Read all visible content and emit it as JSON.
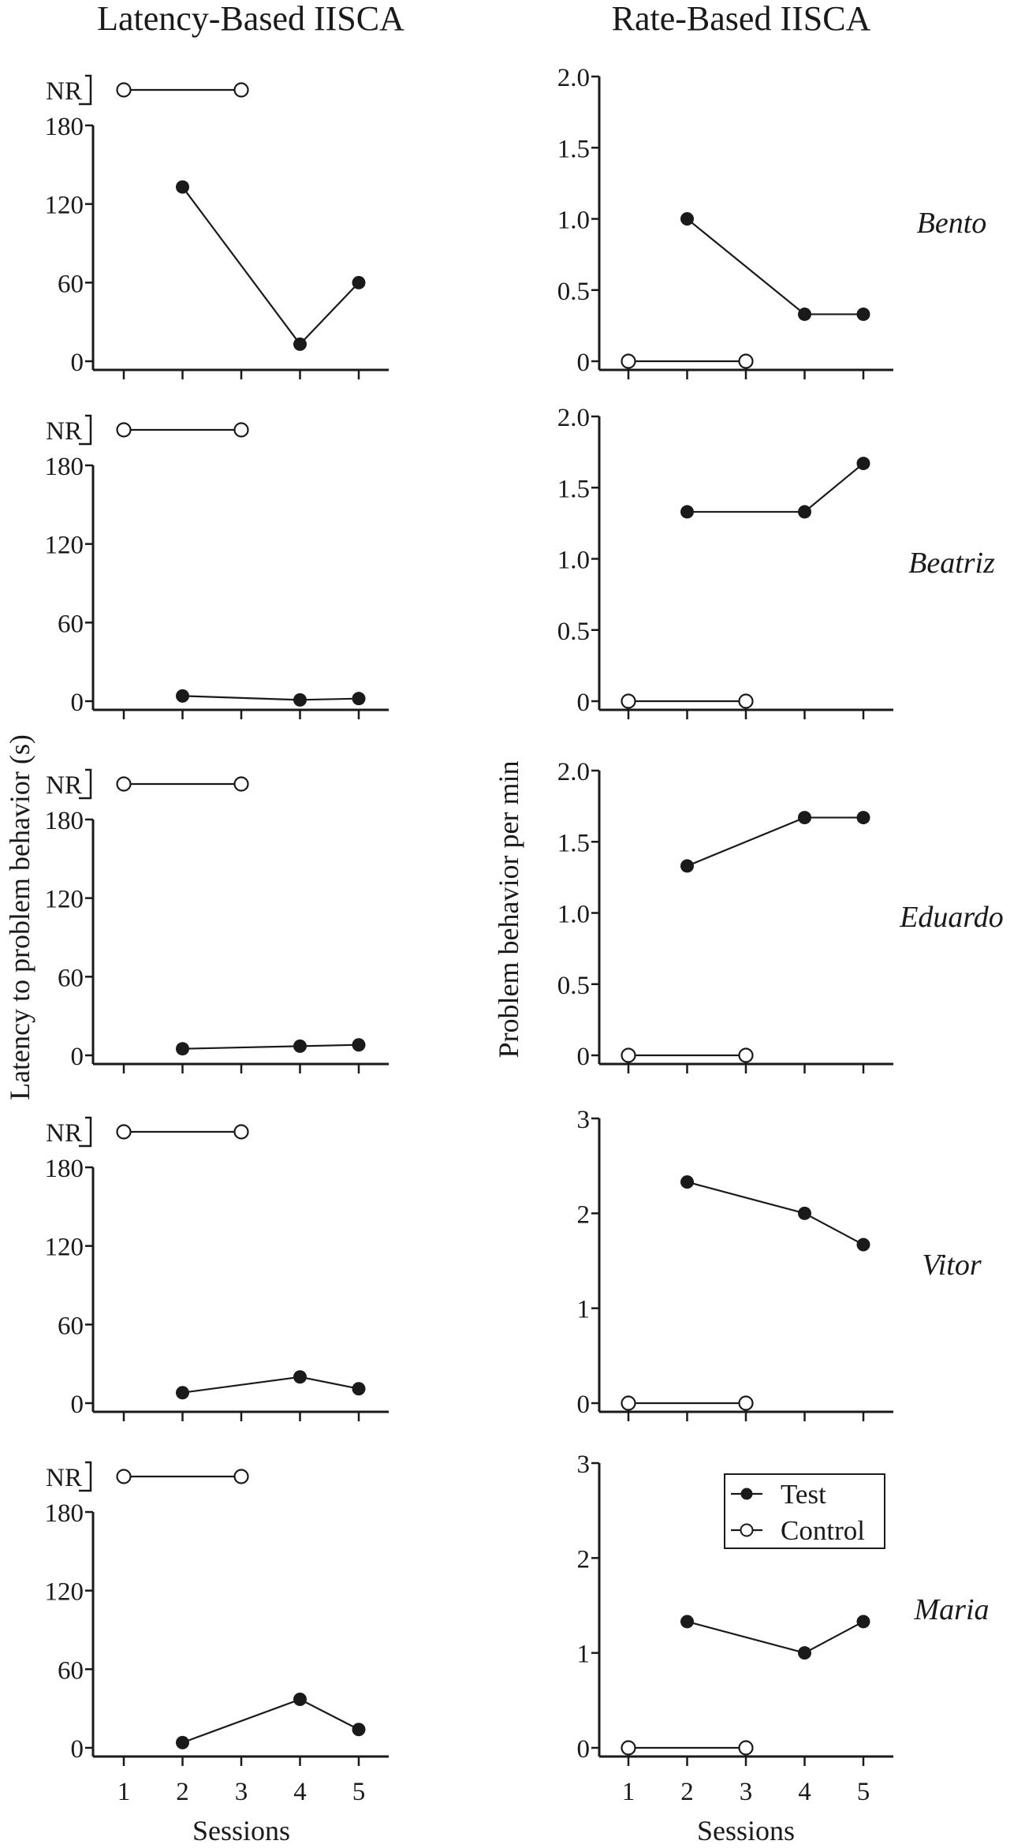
{
  "chart_data": {
    "type": "line",
    "titles": {
      "left": "Latency-Based IISCA",
      "right": "Rate-Based IISCA"
    },
    "ylabels": {
      "left": "Latency to problem behavior (s)",
      "right": "Problem behavior per min"
    },
    "xlabel": "Sessions",
    "x": [
      1,
      2,
      3,
      4,
      5
    ],
    "x_tick_labels": [
      "1",
      "2",
      "3",
      "4",
      "5"
    ],
    "legend": {
      "placement": "inside bottom-right panel, top",
      "entries": [
        "Test",
        "Control"
      ]
    },
    "nr_label": "NR",
    "left_y": {
      "ylim": [
        0,
        180
      ],
      "ticks": [
        0,
        60,
        120,
        180
      ],
      "tick_labels": [
        "0",
        "60",
        "120",
        "180"
      ]
    },
    "participants": [
      {
        "name": "Bento",
        "latency": {
          "test": [
            null,
            133,
            null,
            13,
            60
          ],
          "control": [
            "NR",
            null,
            "NR",
            null,
            null
          ]
        },
        "rate": {
          "ylim": [
            0,
            2.0
          ],
          "ticks": [
            0,
            0.5,
            1.0,
            1.5,
            2.0
          ],
          "tick_labels": [
            "0",
            "0.5",
            "1.0",
            "1.5",
            "2.0"
          ],
          "test": [
            null,
            1.0,
            null,
            0.33,
            0.33
          ],
          "control": [
            0,
            null,
            0,
            null,
            null
          ]
        }
      },
      {
        "name": "Beatriz",
        "latency": {
          "test": [
            null,
            4,
            null,
            1,
            2
          ],
          "control": [
            "NR",
            null,
            "NR",
            null,
            null
          ]
        },
        "rate": {
          "ylim": [
            0,
            2.0
          ],
          "ticks": [
            0,
            0.5,
            1.0,
            1.5,
            2.0
          ],
          "tick_labels": [
            "0",
            "0.5",
            "1.0",
            "1.5",
            "2.0"
          ],
          "test": [
            null,
            1.33,
            null,
            1.33,
            1.67
          ],
          "control": [
            0,
            null,
            0,
            null,
            null
          ]
        }
      },
      {
        "name": "Eduardo",
        "latency": {
          "test": [
            null,
            5,
            null,
            7,
            8
          ],
          "control": [
            "NR",
            null,
            "NR",
            null,
            null
          ]
        },
        "rate": {
          "ylim": [
            0,
            2.0
          ],
          "ticks": [
            0,
            0.5,
            1.0,
            1.5,
            2.0
          ],
          "tick_labels": [
            "0",
            "0.5",
            "1.0",
            "1.5",
            "2.0"
          ],
          "test": [
            null,
            1.33,
            null,
            1.67,
            1.67
          ],
          "control": [
            0,
            null,
            0,
            null,
            null
          ]
        }
      },
      {
        "name": "Vitor",
        "latency": {
          "test": [
            null,
            8,
            null,
            20,
            11
          ],
          "control": [
            "NR",
            null,
            "NR",
            null,
            null
          ]
        },
        "rate": {
          "ylim": [
            0,
            3
          ],
          "ticks": [
            0,
            1,
            2,
            3
          ],
          "tick_labels": [
            "0",
            "1",
            "2",
            "3"
          ],
          "test": [
            null,
            2.33,
            null,
            2.0,
            1.67
          ],
          "control": [
            0,
            null,
            0,
            null,
            null
          ]
        }
      },
      {
        "name": "Maria",
        "latency": {
          "test": [
            null,
            4,
            null,
            37,
            14
          ],
          "control": [
            "NR",
            null,
            "NR",
            null,
            null
          ]
        },
        "rate": {
          "ylim": [
            0,
            3
          ],
          "ticks": [
            0,
            1,
            2,
            3
          ],
          "tick_labels": [
            "0",
            "1",
            "2",
            "3"
          ],
          "test": [
            null,
            1.33,
            null,
            1.0,
            1.33
          ],
          "control": [
            0,
            null,
            0,
            null,
            null
          ]
        }
      }
    ],
    "colors": {
      "ink": "#1a1a1a",
      "background": "#ffffff",
      "open_marker_fill": "#ffffff"
    }
  }
}
